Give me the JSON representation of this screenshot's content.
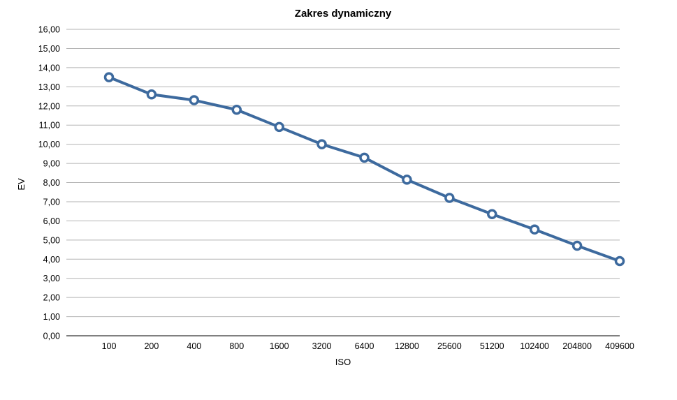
{
  "chart_data": {
    "type": "line",
    "title": "Zakres dynamiczny",
    "xlabel": "ISO",
    "ylabel": "EV",
    "categories": [
      "100",
      "200",
      "400",
      "800",
      "1600",
      "3200",
      "6400",
      "12800",
      "25600",
      "51200",
      "102400",
      "204800",
      "409600"
    ],
    "series": [
      {
        "values": [
          13.5,
          12.6,
          12.3,
          11.8,
          10.9,
          10.0,
          9.3,
          8.15,
          7.2,
          6.35,
          5.55,
          4.7,
          3.9
        ]
      }
    ],
    "ylim": [
      0,
      16
    ],
    "y_ticks": [
      "0,00",
      "1,00",
      "2,00",
      "3,00",
      "4,00",
      "5,00",
      "6,00",
      "7,00",
      "8,00",
      "9,00",
      "10,00",
      "11,00",
      "12,00",
      "13,00",
      "14,00",
      "15,00",
      "16,00"
    ],
    "grid": true,
    "legend": "none",
    "colors": {
      "line": "#3d6a9e",
      "grid": "#b3b3b3",
      "axis": "#000000",
      "marker_fill": "#ffffff"
    }
  }
}
